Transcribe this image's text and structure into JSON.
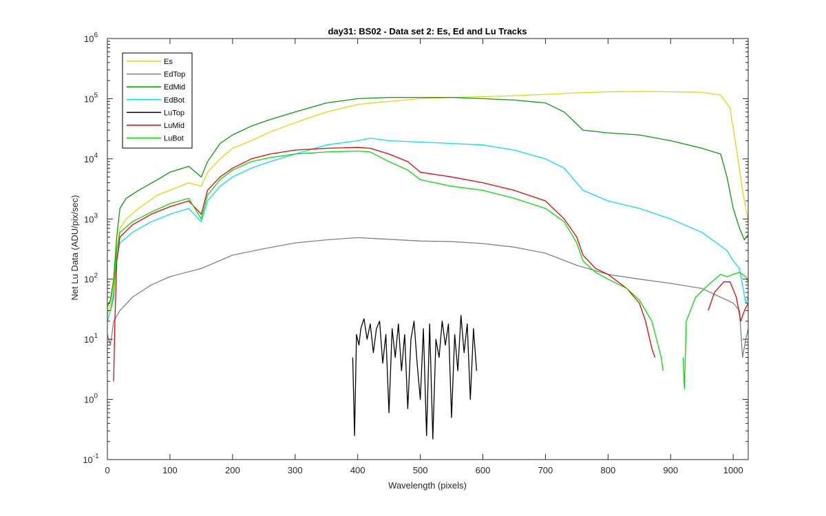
{
  "chart_data": {
    "type": "line",
    "title": "day31: BS02 - Data set 2: Es, Ed and Lu Tracks",
    "xlabel": "Wavelength (pixels)",
    "ylabel": "Net Lu Data (ADU/pix/sec)",
    "xlim": [
      0,
      1024
    ],
    "ylim": [
      0.1,
      1000000
    ],
    "yscale": "log",
    "grid": false,
    "legend_position": "top-left",
    "x_ticks": [
      0,
      100,
      200,
      300,
      400,
      500,
      600,
      700,
      800,
      900,
      1000
    ],
    "x_tick_labels": [
      "0",
      "100",
      "200",
      "300",
      "400",
      "500",
      "600",
      "700",
      "800",
      "900",
      "1000"
    ],
    "y_ticks": [
      0.1,
      1,
      10,
      100,
      1000,
      10000,
      100000,
      1000000
    ],
    "y_tick_base": [
      "10",
      "10",
      "10",
      "10",
      "10",
      "10",
      "10",
      "10"
    ],
    "y_tick_exp": [
      "-1",
      "0",
      "1",
      "2",
      "3",
      "4",
      "5",
      "6"
    ],
    "series": [
      {
        "name": "Es",
        "color": "#e6d600",
        "points": [
          [
            0,
            25
          ],
          [
            5,
            40
          ],
          [
            10,
            80
          ],
          [
            15,
            300
          ],
          [
            20,
            700
          ],
          [
            30,
            1000
          ],
          [
            50,
            1500
          ],
          [
            80,
            2500
          ],
          [
            100,
            3000
          ],
          [
            130,
            4000
          ],
          [
            150,
            3500
          ],
          [
            160,
            6000
          ],
          [
            180,
            10000
          ],
          [
            200,
            15000
          ],
          [
            230,
            20000
          ],
          [
            260,
            28000
          ],
          [
            300,
            40000
          ],
          [
            350,
            60000
          ],
          [
            400,
            80000
          ],
          [
            450,
            90000
          ],
          [
            500,
            100000
          ],
          [
            550,
            105000
          ],
          [
            600,
            108000
          ],
          [
            650,
            112000
          ],
          [
            700,
            118000
          ],
          [
            750,
            125000
          ],
          [
            800,
            130000
          ],
          [
            850,
            132000
          ],
          [
            900,
            130000
          ],
          [
            950,
            128000
          ],
          [
            980,
            115000
          ],
          [
            995,
            70000
          ],
          [
            1005,
            15000
          ],
          [
            1015,
            3000
          ],
          [
            1024,
            900
          ]
        ]
      },
      {
        "name": "EdTop",
        "color": "#808080",
        "points": [
          [
            0,
            12
          ],
          [
            5,
            8
          ],
          [
            10,
            20
          ],
          [
            20,
            30
          ],
          [
            40,
            50
          ],
          [
            70,
            80
          ],
          [
            100,
            110
          ],
          [
            150,
            150
          ],
          [
            200,
            250
          ],
          [
            250,
            320
          ],
          [
            300,
            400
          ],
          [
            350,
            450
          ],
          [
            400,
            490
          ],
          [
            450,
            460
          ],
          [
            500,
            430
          ],
          [
            550,
            420
          ],
          [
            600,
            390
          ],
          [
            650,
            340
          ],
          [
            700,
            270
          ],
          [
            750,
            170
          ],
          [
            800,
            120
          ],
          [
            850,
            100
          ],
          [
            900,
            85
          ],
          [
            950,
            70
          ],
          [
            980,
            50
          ],
          [
            1000,
            40
          ],
          [
            1010,
            30
          ],
          [
            1015,
            5
          ],
          [
            1020,
            10
          ],
          [
            1024,
            15
          ]
        ]
      },
      {
        "name": "EdMid",
        "color": "#00a000",
        "points": [
          [
            0,
            35
          ],
          [
            5,
            45
          ],
          [
            10,
            100
          ],
          [
            15,
            500
          ],
          [
            20,
            1500
          ],
          [
            30,
            2200
          ],
          [
            50,
            3000
          ],
          [
            80,
            4500
          ],
          [
            100,
            6000
          ],
          [
            130,
            7500
          ],
          [
            150,
            5000
          ],
          [
            160,
            9000
          ],
          [
            180,
            18000
          ],
          [
            200,
            25000
          ],
          [
            230,
            35000
          ],
          [
            260,
            45000
          ],
          [
            300,
            60000
          ],
          [
            350,
            85000
          ],
          [
            400,
            100000
          ],
          [
            450,
            105000
          ],
          [
            500,
            105000
          ],
          [
            550,
            105000
          ],
          [
            600,
            100000
          ],
          [
            650,
            95000
          ],
          [
            700,
            85000
          ],
          [
            730,
            60000
          ],
          [
            760,
            30000
          ],
          [
            800,
            27000
          ],
          [
            850,
            25000
          ],
          [
            900,
            20000
          ],
          [
            950,
            15000
          ],
          [
            980,
            12000
          ],
          [
            990,
            5000
          ],
          [
            1000,
            1500
          ],
          [
            1010,
            700
          ],
          [
            1018,
            450
          ],
          [
            1024,
            550
          ]
        ]
      },
      {
        "name": "EdBot",
        "color": "#00e0ff",
        "points": [
          [
            0,
            20
          ],
          [
            5,
            30
          ],
          [
            10,
            60
          ],
          [
            15,
            200
          ],
          [
            20,
            400
          ],
          [
            40,
            600
          ],
          [
            70,
            900
          ],
          [
            100,
            1200
          ],
          [
            130,
            1500
          ],
          [
            150,
            900
          ],
          [
            160,
            2000
          ],
          [
            180,
            3500
          ],
          [
            200,
            5000
          ],
          [
            230,
            7000
          ],
          [
            260,
            9000
          ],
          [
            300,
            12000
          ],
          [
            350,
            17000
          ],
          [
            400,
            20000
          ],
          [
            420,
            22000
          ],
          [
            450,
            20000
          ],
          [
            500,
            19000
          ],
          [
            550,
            18000
          ],
          [
            600,
            17000
          ],
          [
            650,
            14000
          ],
          [
            700,
            10000
          ],
          [
            730,
            7000
          ],
          [
            760,
            3000
          ],
          [
            800,
            2000
          ],
          [
            850,
            1500
          ],
          [
            900,
            1000
          ],
          [
            950,
            600
          ],
          [
            990,
            300
          ],
          [
            1000,
            200
          ],
          [
            1010,
            150
          ],
          [
            1020,
            40
          ],
          [
            1024,
            50
          ]
        ]
      },
      {
        "name": "LuTop",
        "color": "#000000",
        "segments": [
          [
            [
              392,
              5
            ],
            [
              395,
              0.25
            ],
            [
              398,
              12
            ],
            [
              402,
              8
            ],
            [
              405,
              15
            ],
            [
              410,
              22
            ],
            [
              415,
              10
            ],
            [
              420,
              18
            ],
            [
              425,
              6
            ],
            [
              430,
              15
            ],
            [
              435,
              20
            ],
            [
              440,
              4
            ],
            [
              445,
              12
            ],
            [
              450,
              0.6
            ],
            [
              455,
              15
            ],
            [
              460,
              5
            ],
            [
              465,
              18
            ],
            [
              470,
              3
            ],
            [
              475,
              12
            ],
            [
              480,
              0.7
            ],
            [
              485,
              10
            ],
            [
              490,
              20
            ],
            [
              495,
              4
            ],
            [
              500,
              1
            ],
            [
              505,
              15
            ],
            [
              510,
              0.25
            ],
            [
              515,
              18
            ],
            [
              520,
              0.22
            ],
            [
              525,
              10
            ],
            [
              530,
              5
            ],
            [
              535,
              20
            ],
            [
              540,
              8
            ],
            [
              545,
              18
            ],
            [
              550,
              0.5
            ],
            [
              555,
              12
            ],
            [
              560,
              3
            ],
            [
              565,
              25
            ],
            [
              570,
              6
            ],
            [
              575,
              18
            ],
            [
              580,
              1
            ],
            [
              585,
              15
            ],
            [
              590,
              3
            ]
          ]
        ]
      },
      {
        "name": "LuMid",
        "color": "#ee0000",
        "segments": [
          [
            [
              10,
              2
            ],
            [
              12,
              20
            ],
            [
              15,
              200
            ],
            [
              20,
              500
            ],
            [
              40,
              800
            ],
            [
              70,
              1200
            ],
            [
              100,
              1600
            ],
            [
              130,
              2000
            ],
            [
              150,
              1200
            ],
            [
              160,
              3000
            ],
            [
              180,
              5000
            ],
            [
              200,
              7000
            ],
            [
              230,
              10000
            ],
            [
              260,
              12000
            ],
            [
              300,
              14000
            ],
            [
              350,
              15000
            ],
            [
              400,
              15500
            ],
            [
              420,
              15000
            ],
            [
              450,
              12000
            ],
            [
              480,
              9000
            ],
            [
              500,
              6000
            ],
            [
              550,
              5000
            ],
            [
              600,
              4000
            ],
            [
              650,
              3000
            ],
            [
              700,
              2000
            ],
            [
              730,
              1000
            ],
            [
              750,
              500
            ],
            [
              760,
              250
            ],
            [
              780,
              150
            ],
            [
              800,
              120
            ],
            [
              830,
              70
            ],
            [
              850,
              40
            ],
            [
              860,
              20
            ],
            [
              870,
              7
            ],
            [
              875,
              5
            ]
          ],
          [
            [
              960,
              30
            ],
            [
              970,
              60
            ],
            [
              985,
              90
            ],
            [
              995,
              90
            ],
            [
              1005,
              50
            ],
            [
              1012,
              20
            ],
            [
              1018,
              30
            ],
            [
              1024,
              40
            ]
          ]
        ]
      },
      {
        "name": "LuBot",
        "color": "#00e000",
        "segments": [
          [
            [
              5,
              30
            ],
            [
              10,
              50
            ],
            [
              15,
              300
            ],
            [
              20,
              600
            ],
            [
              40,
              900
            ],
            [
              70,
              1300
            ],
            [
              100,
              1800
            ],
            [
              130,
              2200
            ],
            [
              150,
              1000
            ],
            [
              160,
              2500
            ],
            [
              180,
              4500
            ],
            [
              200,
              6500
            ],
            [
              230,
              9000
            ],
            [
              260,
              10500
            ],
            [
              300,
              12000
            ],
            [
              350,
              13000
            ],
            [
              400,
              13500
            ],
            [
              420,
              13000
            ],
            [
              450,
              9000
            ],
            [
              480,
              6500
            ],
            [
              500,
              4500
            ],
            [
              550,
              3500
            ],
            [
              600,
              3000
            ],
            [
              650,
              2200
            ],
            [
              700,
              1500
            ],
            [
              730,
              900
            ],
            [
              750,
              400
            ],
            [
              760,
              200
            ],
            [
              780,
              130
            ],
            [
              800,
              100
            ],
            [
              830,
              70
            ],
            [
              850,
              45
            ],
            [
              870,
              20
            ],
            [
              885,
              5
            ],
            [
              888,
              3
            ]
          ],
          [
            [
              920,
              5
            ],
            [
              922,
              1.5
            ],
            [
              925,
              20
            ],
            [
              940,
              50
            ],
            [
              960,
              80
            ],
            [
              980,
              120
            ],
            [
              990,
              110
            ],
            [
              1000,
              120
            ],
            [
              1010,
              130
            ],
            [
              1020,
              110
            ],
            [
              1024,
              90
            ]
          ]
        ]
      }
    ]
  }
}
